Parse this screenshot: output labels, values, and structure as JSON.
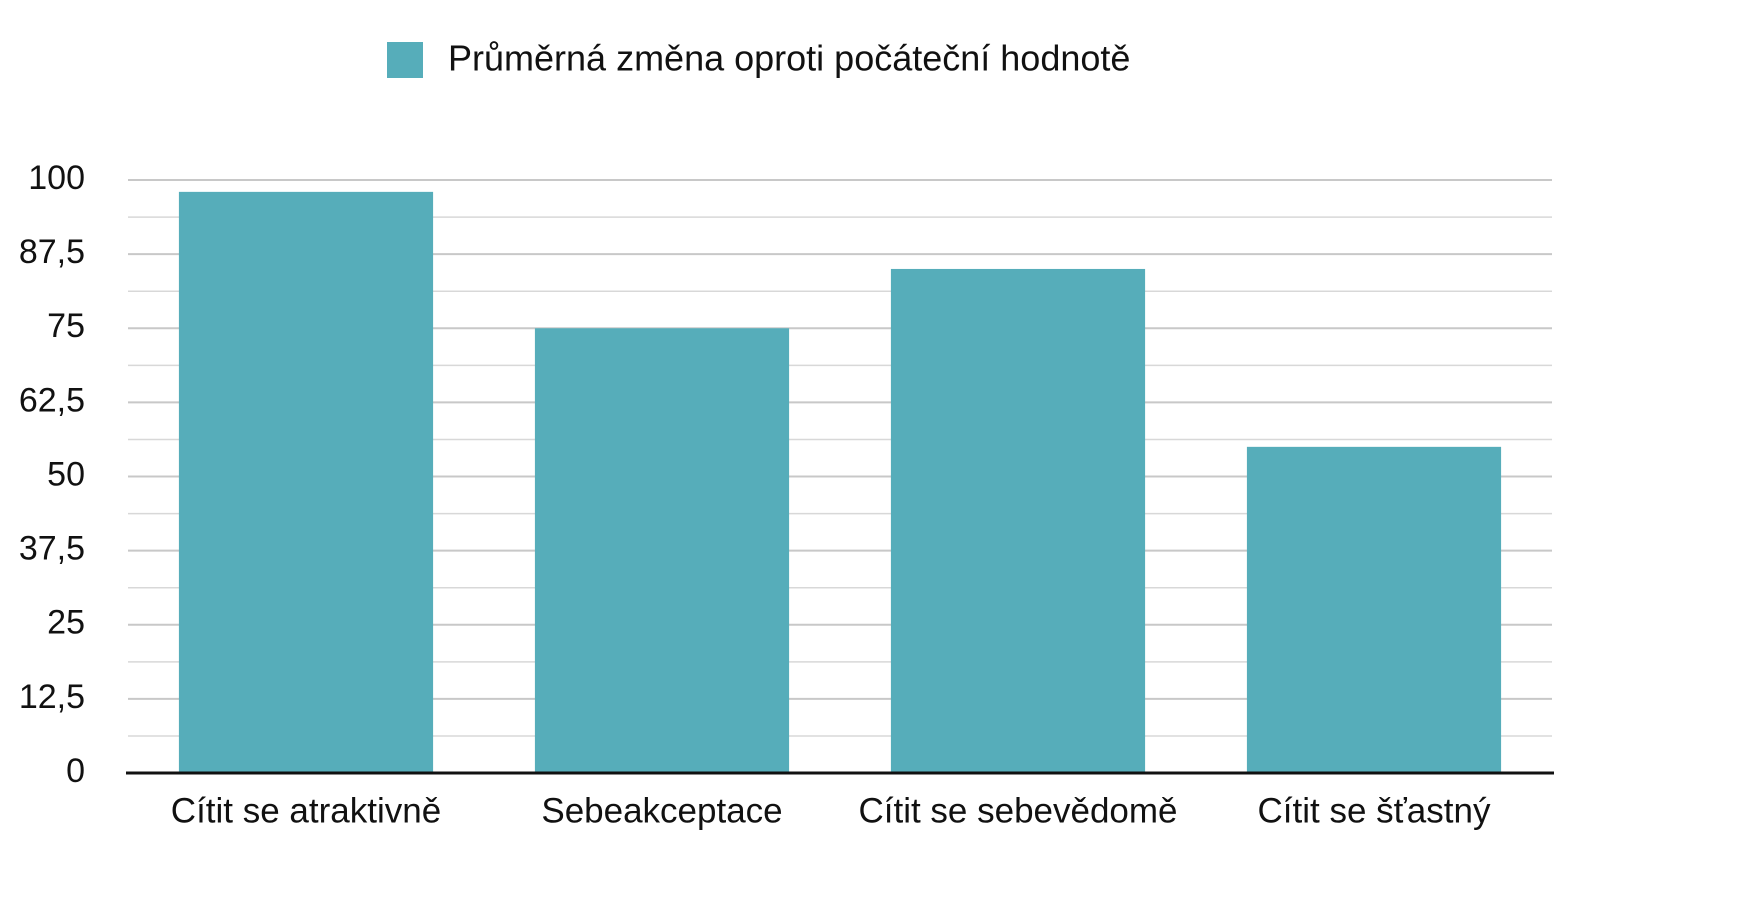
{
  "chart_data": {
    "type": "bar",
    "legend": "top",
    "series": [
      {
        "name": "Průměrná změna oproti počáteční hodnotě",
        "color": "#56adba",
        "values": [
          98,
          75,
          85,
          55
        ]
      }
    ],
    "categories": [
      "Cítit se atraktivně",
      "Sebeakceptace",
      "Cítit se sebevědomě",
      "Cítit se šťastný"
    ],
    "ylim": [
      0,
      100
    ],
    "yticks": [
      0,
      {
        "value": 12.5,
        "label": "12,5"
      },
      25,
      {
        "value": 37.5,
        "label": "37,5"
      },
      50,
      {
        "value": 62.5,
        "label": "62,5"
      },
      75,
      {
        "value": 87.5,
        "label": "87,5"
      },
      100
    ],
    "grid": true
  }
}
